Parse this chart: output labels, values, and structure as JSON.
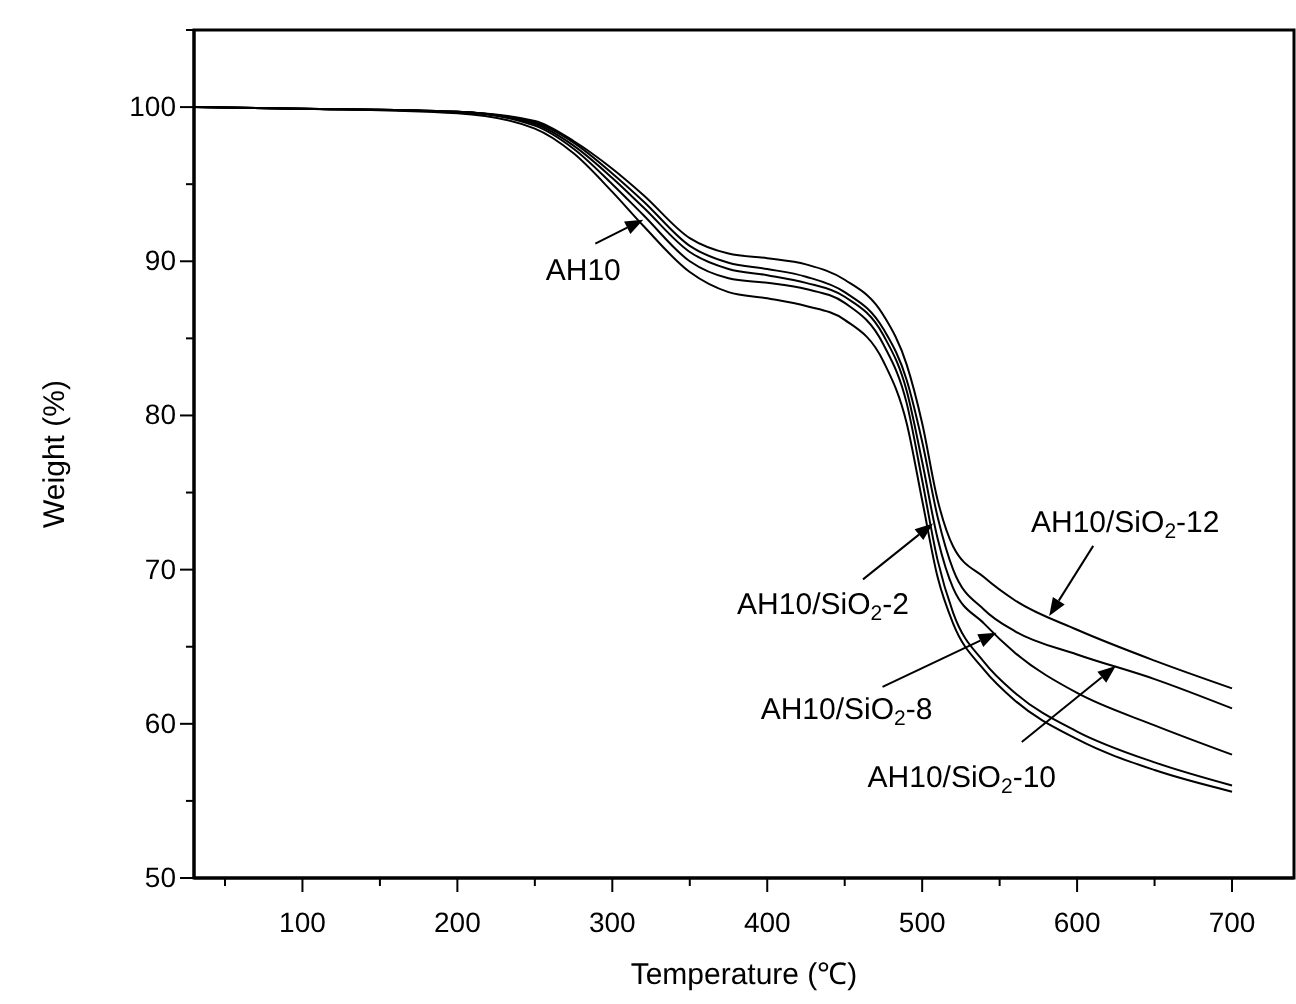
{
  "chart_data": {
    "type": "line",
    "xlabel": "Temperature (℃)",
    "ylabel": "Weight (%)",
    "xlim": [
      30,
      740
    ],
    "ylim": [
      50,
      105
    ],
    "xticks": [
      {
        "value": 50,
        "label": null
      },
      100,
      {
        "value": 150,
        "label": null
      },
      200,
      {
        "value": 250,
        "label": null
      },
      300,
      {
        "value": 350,
        "label": null
      },
      400,
      {
        "value": 450,
        "label": null
      },
      500,
      {
        "value": 550,
        "label": null
      },
      600,
      {
        "value": 650,
        "label": null
      },
      700
    ],
    "yticks": [
      50,
      {
        "value": 55,
        "label": null
      },
      60,
      {
        "value": 65,
        "label": null
      },
      70,
      {
        "value": 75,
        "label": null
      },
      80,
      {
        "value": 85,
        "label": null
      },
      90,
      {
        "value": 95,
        "label": null
      },
      100,
      {
        "value": 105,
        "label": null
      }
    ],
    "grid": false,
    "marker": "none",
    "line_style": "solid",
    "x": [
      30,
      100,
      200,
      250,
      275,
      300,
      320,
      350,
      375,
      400,
      425,
      450,
      475,
      490,
      500,
      510,
      520,
      540,
      560,
      600,
      650,
      700
    ],
    "series": [
      {
        "color": "#000000",
        "values": [
          100,
          99.9,
          99.6,
          98.6,
          97,
          94.5,
          92.3,
          89.3,
          88,
          87.6,
          87.1,
          86.2,
          83.5,
          79.5,
          74.5,
          69.5,
          66.5,
          63.5,
          61.5,
          59,
          57,
          55.6
        ]
      },
      {
        "color": "#000000",
        "values": [
          100,
          99.9,
          99.7,
          98.8,
          97.3,
          95,
          93,
          90,
          88.9,
          88.6,
          88.2,
          87.3,
          84.6,
          80.8,
          75.8,
          70.6,
          67.2,
          64,
          62,
          59.5,
          57.5,
          56
        ]
      },
      {
        "color": "#000000",
        "values": [
          100,
          99.9,
          99.7,
          98.9,
          97.5,
          95.4,
          93.5,
          90.6,
          89.5,
          89.1,
          88.6,
          87.7,
          85.2,
          81.6,
          77,
          72,
          68.8,
          66.5,
          64.6,
          62,
          59.9,
          58
        ]
      },
      {
        "color": "#000000",
        "values": [
          100,
          99.9,
          99.7,
          99,
          97.7,
          95.7,
          93.9,
          91,
          89.9,
          89.5,
          89,
          88,
          85.6,
          82.3,
          78.3,
          73.4,
          70,
          67.4,
          66,
          64.5,
          62.9,
          61
        ]
      },
      {
        "color": "#000000",
        "values": [
          100,
          99.9,
          99.7,
          99.1,
          97.8,
          96,
          94.3,
          91.5,
          90.5,
          90.2,
          89.8,
          88.8,
          86.5,
          83.3,
          79.5,
          74.5,
          71.5,
          69.5,
          68,
          66.1,
          64.1,
          62.3
        ]
      }
    ],
    "annotations": [
      {
        "text": "AH10",
        "x": 320,
        "y": 92.7
      },
      {
        "text": "AH10/SiO$_{2}$-2",
        "x": 507,
        "y": 73.0
      },
      {
        "text": "AH10/SiO$_{2}$-8",
        "x": 548,
        "y": 65.9
      },
      "AH10/SiO$_{2}$-10",
      {
        "text": "AH10/SiO$_{2}$-12",
        "x": 582,
        "y": 67.0
      }
    ]
  }
}
